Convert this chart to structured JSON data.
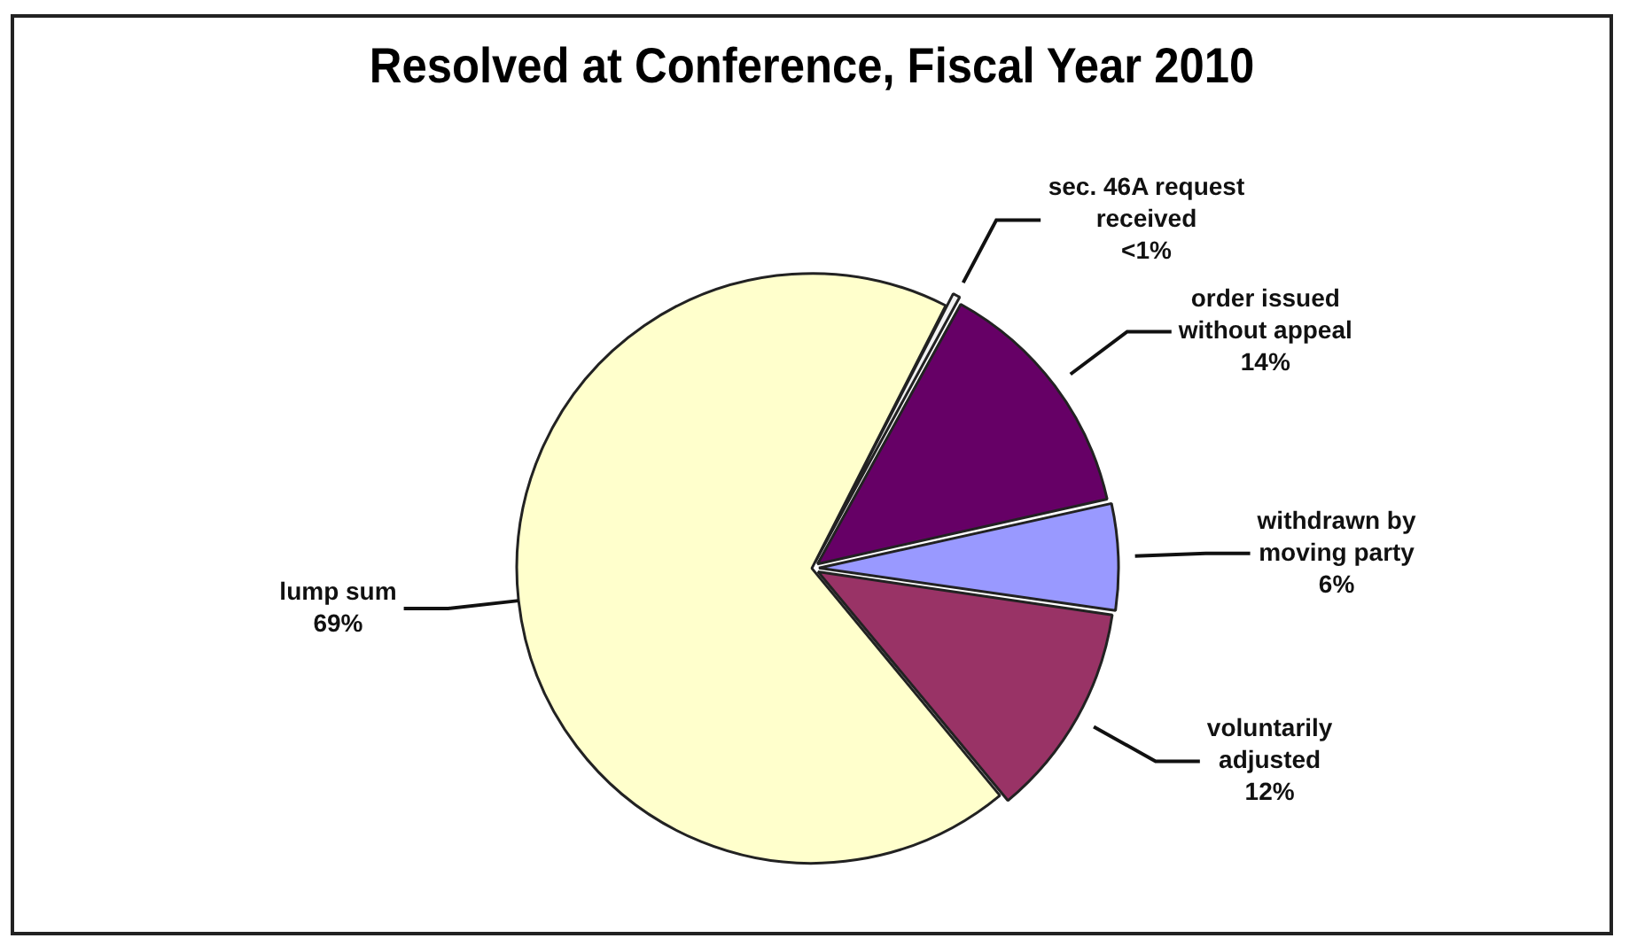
{
  "chart_data": {
    "type": "pie",
    "title": "Resolved at Conference, Fiscal Year 2010",
    "categories": [
      "sec. 46A request received",
      "order issued without appeal",
      "withdrawn by moving party",
      "voluntarily adjusted",
      "lump sum"
    ],
    "values": [
      0.5,
      13.5,
      5.8,
      11.7,
      68.5
    ],
    "value_labels": [
      "<1%",
      "14%",
      "6%",
      "12%",
      "69%"
    ],
    "colors": [
      "#f2f2f2",
      "#660066",
      "#9999ff",
      "#993366",
      "#ffffcc"
    ],
    "legend": false
  }
}
